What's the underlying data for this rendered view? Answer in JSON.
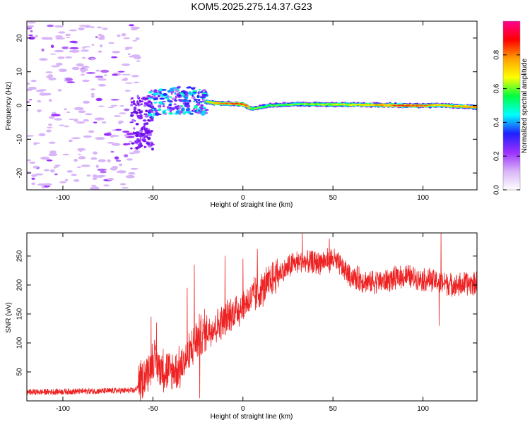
{
  "figure_title": "KOM5.2025.275.14.37.G23",
  "chart_data": [
    {
      "type": "heatmap",
      "title": "KOM5.2025.275.14.37.G23",
      "xlabel": "Height of straight line (km)",
      "ylabel": "Frequency (Hz)",
      "xlim": [
        -120,
        130
      ],
      "ylim": [
        -25,
        25
      ],
      "xticks": [
        -100,
        -50,
        0,
        50,
        100
      ],
      "yticks": [
        -20,
        -10,
        0,
        10,
        20
      ],
      "colorbar": {
        "label": "Normalized spectral amplitude",
        "range": [
          0,
          1
        ],
        "ticks": [
          0.0,
          0.2,
          0.4,
          0.6,
          0.8
        ],
        "colormap": [
          "#ffffff",
          "#d8b4f8",
          "#9b30ff",
          "#2020ff",
          "#00ffff",
          "#00ff40",
          "#ffff00",
          "#ffa000",
          "#ff0000",
          "#ff0090"
        ]
      },
      "ridge": [
        {
          "x": -55,
          "f": 0.0,
          "amp": 0.25
        },
        {
          "x": -45,
          "f": 0.8,
          "amp": 0.4
        },
        {
          "x": -35,
          "f": 1.5,
          "amp": 0.45
        },
        {
          "x": -25,
          "f": 1.5,
          "amp": 0.55
        },
        {
          "x": -15,
          "f": 0.7,
          "amp": 0.75
        },
        {
          "x": 0,
          "f": 0.4,
          "amp": 0.85
        },
        {
          "x": 5,
          "f": -1.0,
          "amp": 0.6
        },
        {
          "x": 15,
          "f": 0.0,
          "amp": 0.55
        },
        {
          "x": 30,
          "f": 0.4,
          "amp": 0.6
        },
        {
          "x": 50,
          "f": 0.3,
          "amp": 0.65
        },
        {
          "x": 70,
          "f": 0.2,
          "amp": 0.7
        },
        {
          "x": 90,
          "f": 0.0,
          "amp": 0.85
        },
        {
          "x": 100,
          "f": 0.0,
          "amp": 0.8
        },
        {
          "x": 110,
          "f": 0.1,
          "amp": 0.7
        },
        {
          "x": 120,
          "f": -0.3,
          "amp": 0.75
        },
        {
          "x": 130,
          "f": -0.5,
          "amp": 0.8
        }
      ]
    },
    {
      "type": "line",
      "xlabel": "Height of straight line (km)",
      "ylabel": "SNR (v/v)",
      "xlim": [
        -120,
        130
      ],
      "ylim": [
        0,
        290
      ],
      "xticks": [
        -100,
        -50,
        0,
        50,
        100
      ],
      "yticks": [
        50,
        100,
        150,
        200,
        250
      ],
      "color": "#ee2222",
      "trend": [
        {
          "x": -120,
          "y": 15
        },
        {
          "x": -60,
          "y": 18
        },
        {
          "x": -55,
          "y": 40
        },
        {
          "x": -50,
          "y": 70
        },
        {
          "x": -45,
          "y": 55
        },
        {
          "x": -40,
          "y": 50
        },
        {
          "x": -35,
          "y": 55
        },
        {
          "x": -30,
          "y": 80
        },
        {
          "x": -25,
          "y": 110
        },
        {
          "x": -20,
          "y": 120
        },
        {
          "x": -10,
          "y": 140
        },
        {
          "x": 0,
          "y": 165
        },
        {
          "x": 10,
          "y": 190
        },
        {
          "x": 20,
          "y": 220
        },
        {
          "x": 30,
          "y": 240
        },
        {
          "x": 40,
          "y": 238
        },
        {
          "x": 50,
          "y": 245
        },
        {
          "x": 60,
          "y": 215
        },
        {
          "x": 70,
          "y": 205
        },
        {
          "x": 80,
          "y": 208
        },
        {
          "x": 90,
          "y": 215
        },
        {
          "x": 100,
          "y": 210
        },
        {
          "x": 110,
          "y": 205
        },
        {
          "x": 120,
          "y": 200
        },
        {
          "x": 130,
          "y": 205
        }
      ],
      "spikes": [
        {
          "x": -51,
          "y": 145
        },
        {
          "x": -48,
          "y": 135
        },
        {
          "x": -31,
          "y": 195
        },
        {
          "x": -27,
          "y": 235
        },
        {
          "x": -24,
          "y": 5
        },
        {
          "x": -10,
          "y": 250
        },
        {
          "x": 0,
          "y": 245
        },
        {
          "x": 8,
          "y": 262
        },
        {
          "x": 33,
          "y": 290
        },
        {
          "x": 48,
          "y": 280
        },
        {
          "x": 109,
          "y": 130
        },
        {
          "x": 110,
          "y": 290
        }
      ]
    }
  ]
}
